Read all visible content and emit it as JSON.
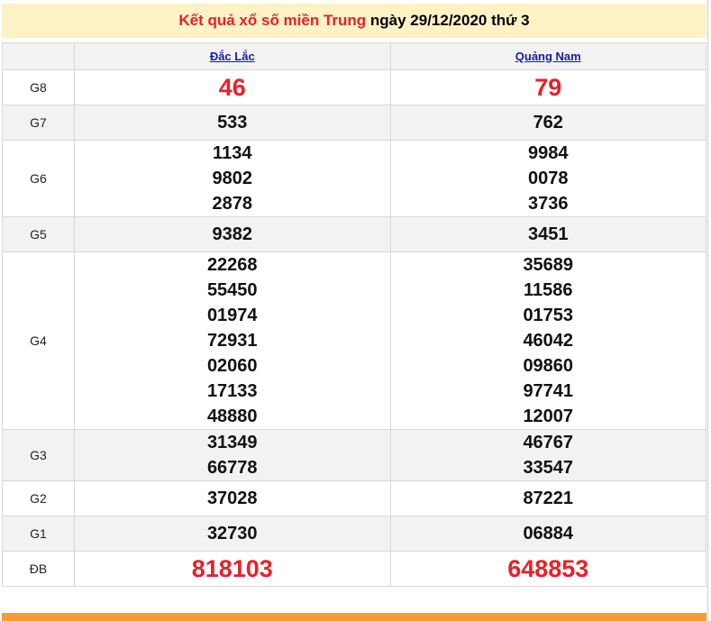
{
  "title": {
    "red": "Kết quả xổ số miền Trung",
    "date": " ngày 29/12/2020 thứ 3"
  },
  "provinces": [
    "Đắc Lắc",
    "Quảng Nam"
  ],
  "rows": [
    {
      "label": "G8",
      "a": [
        "46"
      ],
      "b": [
        "79"
      ],
      "special": true
    },
    {
      "label": "G7",
      "a": [
        "533"
      ],
      "b": [
        "762"
      ]
    },
    {
      "label": "G6",
      "a": [
        "1134",
        "9802",
        "2878"
      ],
      "b": [
        "9984",
        "0078",
        "3736"
      ]
    },
    {
      "label": "G5",
      "a": [
        "9382"
      ],
      "b": [
        "3451"
      ]
    },
    {
      "label": "G4",
      "a": [
        "22268",
        "55450",
        "01974",
        "72931",
        "02060",
        "17133",
        "48880"
      ],
      "b": [
        "35689",
        "11586",
        "01753",
        "46042",
        "09860",
        "97741",
        "12007"
      ]
    },
    {
      "label": "G3",
      "a": [
        "31349",
        "66778"
      ],
      "b": [
        "46767",
        "33547"
      ]
    },
    {
      "label": "G2",
      "a": [
        "37028"
      ],
      "b": [
        "87221"
      ]
    },
    {
      "label": "G1",
      "a": [
        "32730"
      ],
      "b": [
        "06884"
      ]
    },
    {
      "label": "ĐB",
      "a": [
        "818103"
      ],
      "b": [
        "648853"
      ],
      "special": true
    }
  ]
}
